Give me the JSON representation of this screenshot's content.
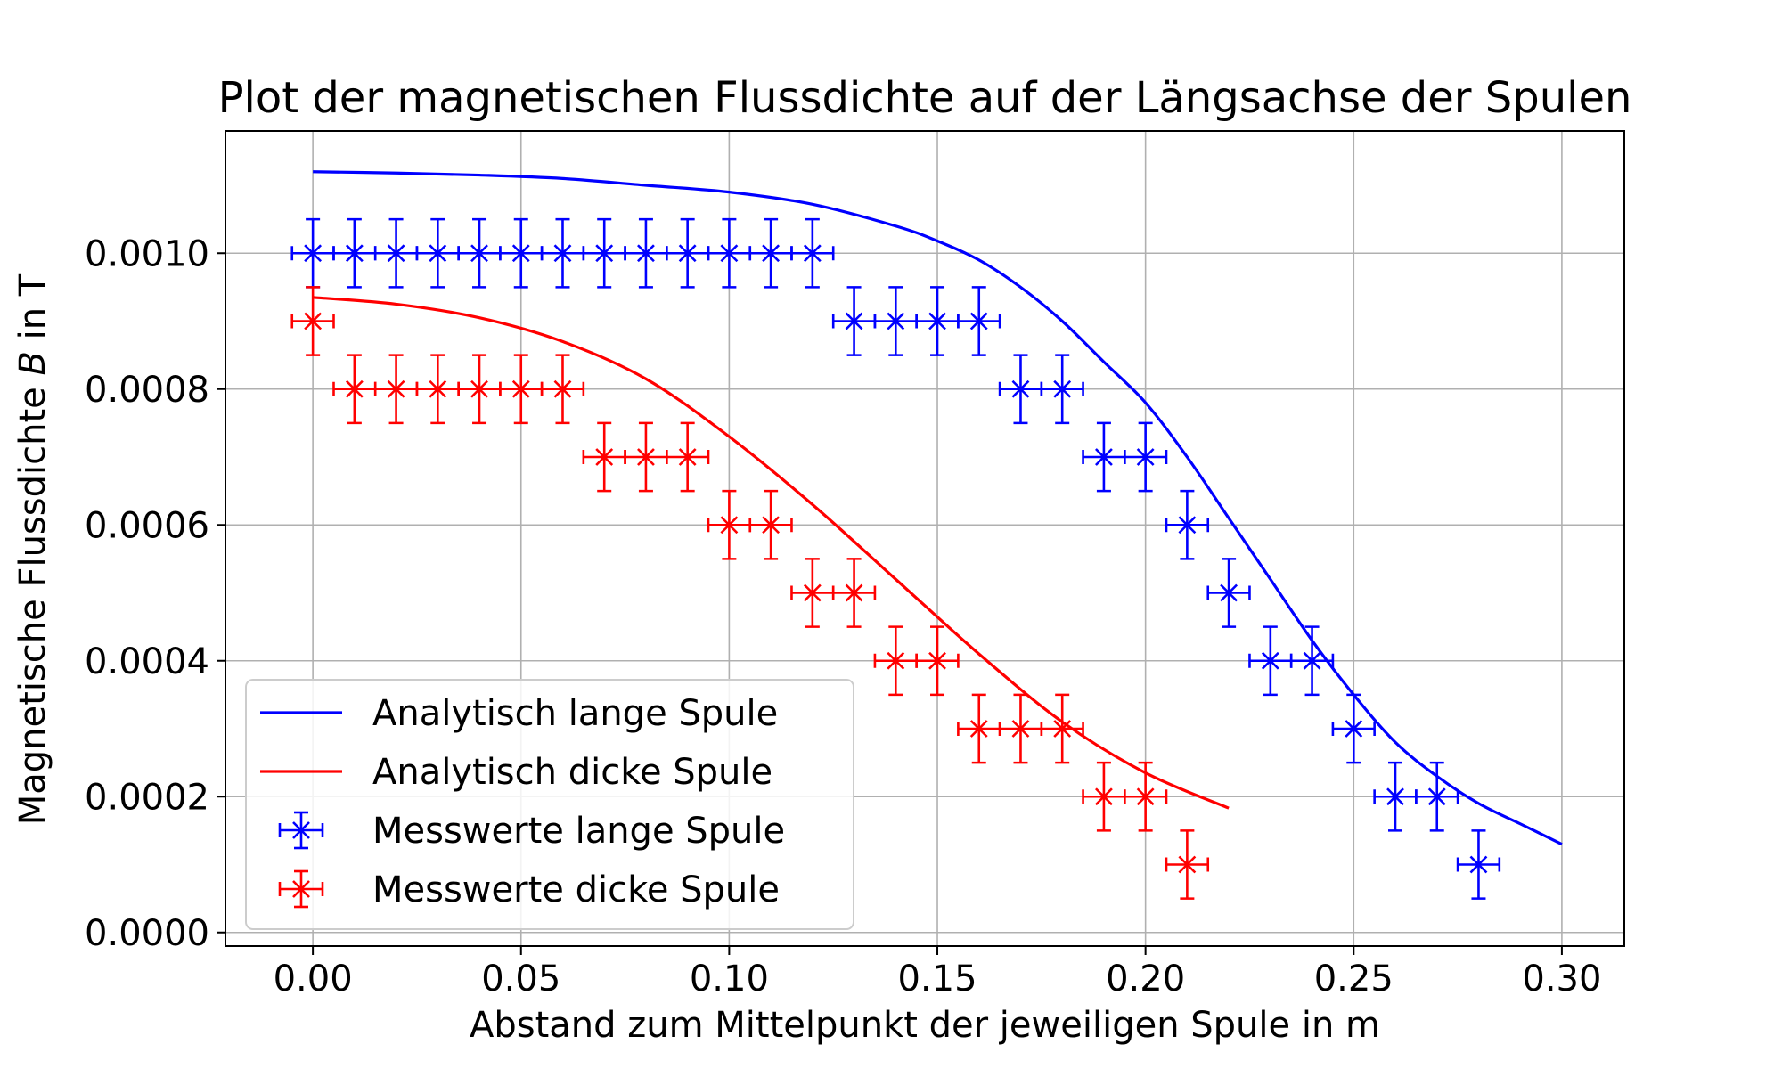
{
  "chart_data": {
    "type": "scatter",
    "title": "Plot der magnetischen Flussdichte auf der Längsachse der Spulen",
    "xlabel": "Abstand zum Mittelpunkt der jeweiligen Spule in m",
    "ylabel_prefix": "Magnetische Flussdichte ",
    "ylabel_symbol": "B",
    "ylabel_suffix": " in T",
    "xlim": [
      -0.021,
      0.315
    ],
    "ylim": [
      -2e-05,
      0.00118
    ],
    "xticks": [
      0.0,
      0.05,
      0.1,
      0.15,
      0.2,
      0.25,
      0.3
    ],
    "xtick_labels": [
      "0.00",
      "0.05",
      "0.10",
      "0.15",
      "0.20",
      "0.25",
      "0.30"
    ],
    "yticks": [
      0.0,
      0.0002,
      0.0004,
      0.0006,
      0.0008,
      0.001
    ],
    "ytick_labels": [
      "0.0000",
      "0.0002",
      "0.0004",
      "0.0006",
      "0.0008",
      "0.0010"
    ],
    "grid": true,
    "legend_position": "lower-left",
    "series": [
      {
        "name": "Analytisch lange Spule",
        "kind": "line",
        "color": "#0000ff",
        "x": [
          0.0,
          0.02,
          0.04,
          0.06,
          0.08,
          0.1,
          0.12,
          0.14,
          0.15,
          0.16,
          0.17,
          0.18,
          0.19,
          0.2,
          0.21,
          0.22,
          0.23,
          0.24,
          0.25,
          0.26,
          0.27,
          0.28,
          0.29,
          0.3
        ],
        "y": [
          0.00112,
          0.001118,
          0.001115,
          0.00111,
          0.0011,
          0.00109,
          0.001072,
          0.00104,
          0.001018,
          0.00099,
          0.00095,
          0.0009,
          0.00084,
          0.00078,
          0.0007,
          0.00061,
          0.00052,
          0.00043,
          0.00035,
          0.00028,
          0.00023,
          0.00019,
          0.00016,
          0.00013
        ]
      },
      {
        "name": "Analytisch dicke Spule",
        "kind": "line",
        "color": "#ff0000",
        "x": [
          0.0,
          0.02,
          0.04,
          0.06,
          0.08,
          0.1,
          0.12,
          0.14,
          0.16,
          0.18,
          0.2,
          0.22
        ],
        "y": [
          0.000935,
          0.000925,
          0.000905,
          0.00087,
          0.000815,
          0.00073,
          0.00063,
          0.00052,
          0.00041,
          0.00031,
          0.000235,
          0.000183
        ]
      },
      {
        "name": "Messwerte lange Spule",
        "kind": "errorbar",
        "color": "#0000ff",
        "xerr": 0.005,
        "yerr": 5e-05,
        "x": [
          0.0,
          0.01,
          0.02,
          0.03,
          0.04,
          0.05,
          0.06,
          0.07,
          0.08,
          0.09,
          0.1,
          0.11,
          0.12,
          0.13,
          0.14,
          0.15,
          0.16,
          0.17,
          0.18,
          0.19,
          0.2,
          0.21,
          0.22,
          0.23,
          0.24,
          0.25,
          0.26,
          0.27,
          0.28
        ],
        "y": [
          0.001,
          0.001,
          0.001,
          0.001,
          0.001,
          0.001,
          0.001,
          0.001,
          0.001,
          0.001,
          0.001,
          0.001,
          0.001,
          0.0009,
          0.0009,
          0.0009,
          0.0009,
          0.0008,
          0.0008,
          0.0007,
          0.0007,
          0.0006,
          0.0005,
          0.0004,
          0.0004,
          0.0003,
          0.0002,
          0.0002,
          0.0001
        ]
      },
      {
        "name": "Messwerte dicke Spule",
        "kind": "errorbar",
        "color": "#ff0000",
        "xerr": 0.005,
        "yerr": 5e-05,
        "x": [
          0.0,
          0.01,
          0.02,
          0.03,
          0.04,
          0.05,
          0.06,
          0.07,
          0.08,
          0.09,
          0.1,
          0.11,
          0.12,
          0.13,
          0.14,
          0.15,
          0.16,
          0.17,
          0.18,
          0.19,
          0.2,
          0.21
        ],
        "y": [
          0.0009,
          0.0008,
          0.0008,
          0.0008,
          0.0008,
          0.0008,
          0.0008,
          0.0007,
          0.0007,
          0.0007,
          0.0006,
          0.0006,
          0.0005,
          0.0005,
          0.0004,
          0.0004,
          0.0003,
          0.0003,
          0.0003,
          0.0002,
          0.0002,
          0.0001
        ]
      }
    ]
  }
}
